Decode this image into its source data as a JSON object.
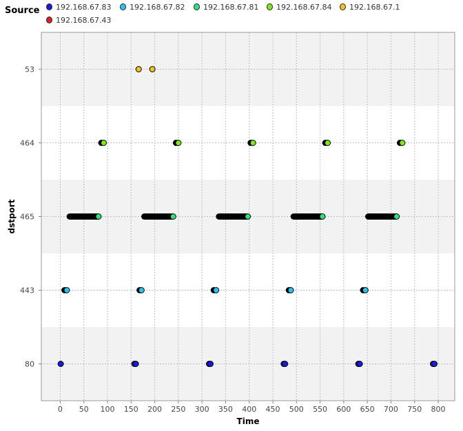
{
  "legend": {
    "title": "Source",
    "items": [
      {
        "label": "192.168.67.83",
        "color": "#1a1adb"
      },
      {
        "label": "192.168.67.82",
        "color": "#29c4f0"
      },
      {
        "label": "192.168.67.81",
        "color": "#33e07a"
      },
      {
        "label": "192.168.67.84",
        "color": "#7de81e"
      },
      {
        "label": "192.168.67.1",
        "color": "#f2c41b"
      },
      {
        "label": "192.168.67.43",
        "color": "#e02020"
      }
    ]
  },
  "chart_data": {
    "type": "scatter",
    "xlabel": "Time",
    "ylabel": "dstport",
    "categories": [
      "80",
      "443",
      "465",
      "464",
      "53"
    ],
    "xlim": [
      -40,
      835
    ],
    "xticks": [
      0,
      50,
      100,
      150,
      200,
      250,
      300,
      350,
      400,
      450,
      500,
      550,
      600,
      650,
      700,
      750,
      800
    ],
    "grid": true,
    "legend_position": "top",
    "band_color": "#f2f2f2",
    "series": [
      {
        "name": "192.168.67.83",
        "color": "#1a1adb",
        "category": "80",
        "x": [
          1,
          157,
          160,
          315,
          318,
          473,
          476,
          631,
          634,
          789,
          792
        ]
      },
      {
        "name": "192.168.67.82",
        "color": "#29c4f0",
        "category": "443",
        "x": [
          14,
          172,
          330,
          488,
          646
        ]
      },
      {
        "name": "192.168.67.81",
        "color": "#33e07a",
        "category": "465",
        "x": [
          81,
          239,
          397,
          555,
          712
        ]
      },
      {
        "name": "192.168.67.84",
        "color": "#7de81e",
        "category": "464",
        "x": [
          92,
          250,
          408,
          566,
          724
        ]
      },
      {
        "name": "192.168.67.1",
        "color": "#f2c41b",
        "category": "53",
        "x": [
          166,
          195
        ]
      },
      {
        "name": "192.168.67.43",
        "color": "#e02020",
        "category": "80",
        "x": []
      },
      {
        "name": "",
        "color": "#000000",
        "category": "443",
        "x": [
          9,
          168,
          325,
          484,
          641
        ]
      },
      {
        "name": "",
        "color": "#000000",
        "category": "464",
        "x": [
          87,
          245,
          403,
          561,
          719
        ]
      },
      {
        "name": "",
        "color": "#000000",
        "category": "465",
        "x_ranges": [
          [
            20,
            78
          ],
          [
            178,
            236
          ],
          [
            336,
            394
          ],
          [
            494,
            552
          ],
          [
            652,
            710
          ]
        ]
      }
    ]
  }
}
